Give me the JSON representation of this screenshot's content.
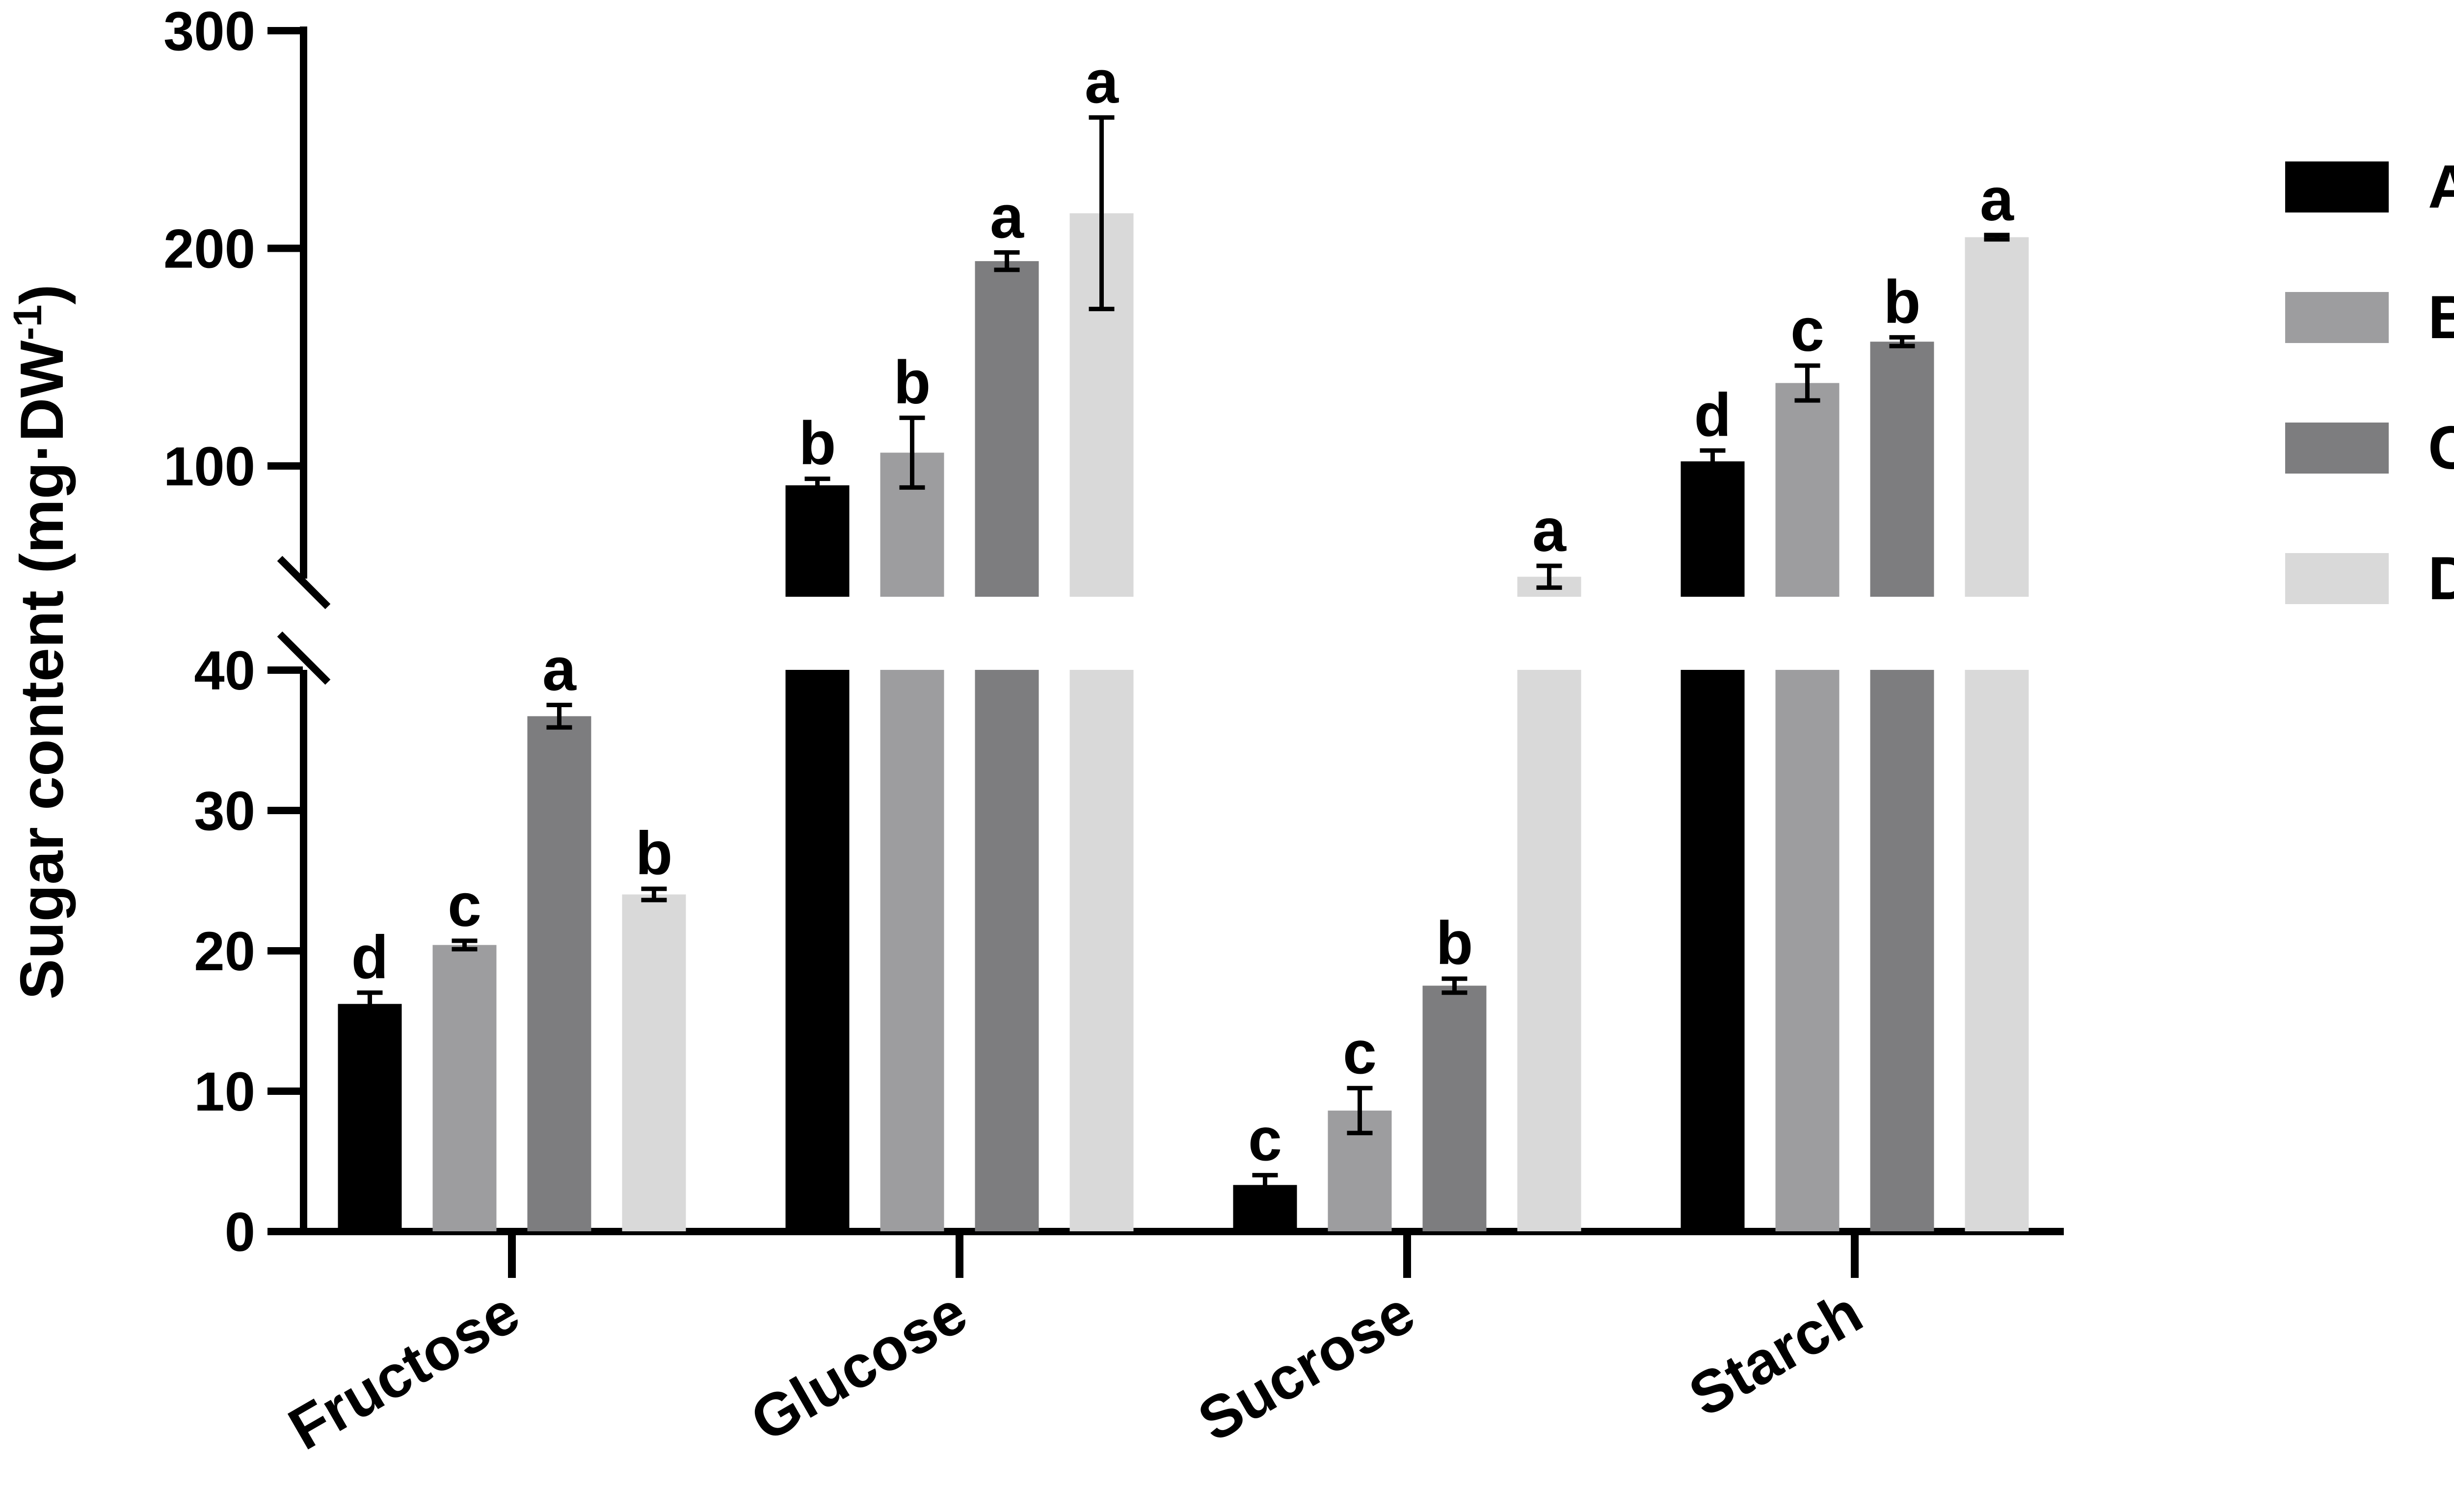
{
  "chart_data": {
    "type": "bar",
    "ylabel": "Sugar content (mg·DW",
    "ylabel_superscript": "-1",
    "ylabel_close": ")",
    "xlabel": "",
    "categories": [
      "Fructose",
      "Glucose",
      "Sucrose",
      "Starch"
    ],
    "y_axis_break": true,
    "ylim_lower": [
      0,
      40
    ],
    "ylim_upper": [
      40,
      300
    ],
    "yticks_lower": [
      "0",
      "10",
      "20",
      "30",
      "40"
    ],
    "yticks_upper": [
      "100",
      "200",
      "300"
    ],
    "legend_position": "right",
    "grid": false,
    "series": [
      {
        "name": "A",
        "color": "#000000",
        "values": [
          16.2,
          91,
          3.3,
          102
        ],
        "errors": [
          0.8,
          3,
          0.7,
          5
        ],
        "letters": [
          "d",
          "b",
          "c",
          "d"
        ]
      },
      {
        "name": "B",
        "color": "#9d9d9f",
        "values": [
          20.4,
          106,
          8.6,
          138
        ],
        "errors": [
          0.3,
          16,
          1.6,
          8
        ],
        "letters": [
          "c",
          "b",
          "c",
          "c"
        ]
      },
      {
        "name": "C",
        "color": "#7d7d7f",
        "values": [
          36.7,
          194,
          17.5,
          157
        ],
        "errors": [
          0.8,
          4,
          0.5,
          2
        ],
        "letters": [
          "a",
          "a",
          "b",
          "b"
        ]
      },
      {
        "name": "D",
        "color": "#d9d9d9",
        "values": [
          24.0,
          216,
          49,
          205
        ],
        "errors": [
          0.4,
          44,
          5,
          1
        ],
        "letters": [
          "b",
          "a",
          "a",
          "a"
        ]
      }
    ]
  }
}
